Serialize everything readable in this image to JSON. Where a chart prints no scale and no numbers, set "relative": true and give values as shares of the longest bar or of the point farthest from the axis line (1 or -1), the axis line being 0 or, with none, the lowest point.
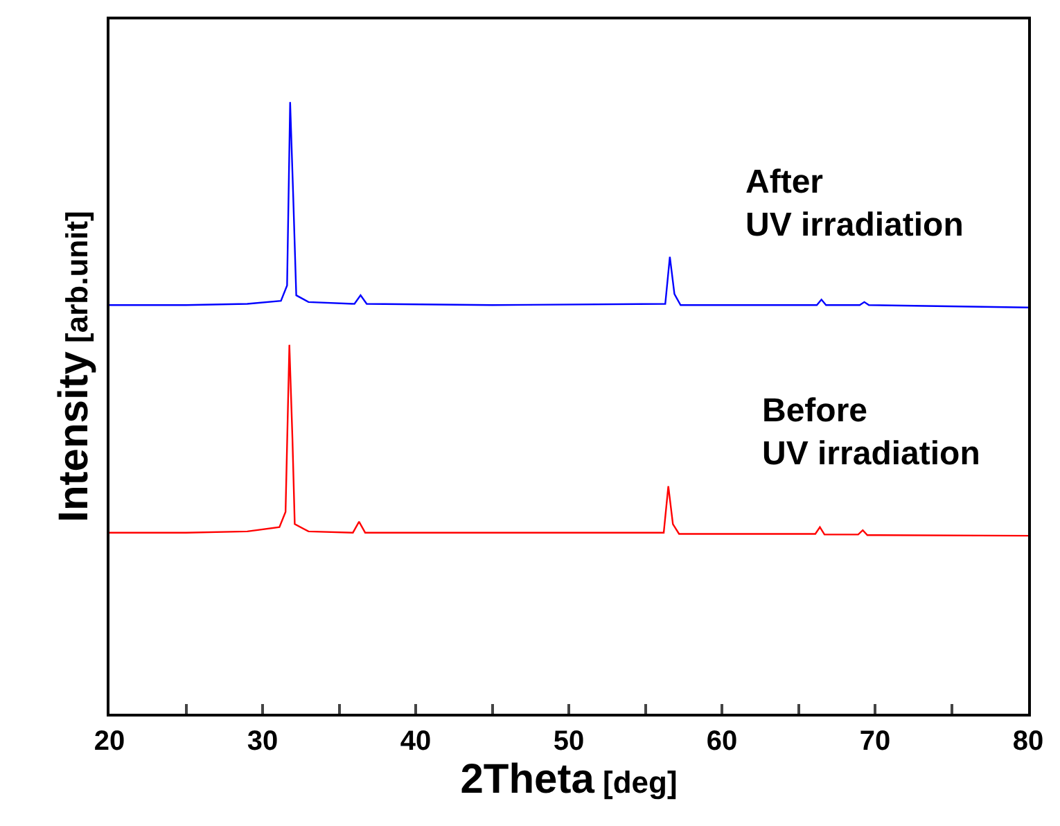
{
  "chart_data": {
    "type": "line",
    "relative": true,
    "xlabel": "2Theta [deg]",
    "ylabel": "Intensity [arb.unit]",
    "xlim": [
      20,
      80
    ],
    "xticks": [
      20,
      {
        "value": 25,
        "label": null
      },
      30,
      {
        "value": 35,
        "label": null
      },
      40,
      {
        "value": 45,
        "label": null
      },
      50,
      {
        "value": 55,
        "label": null
      },
      60,
      {
        "value": 65,
        "label": null
      },
      70,
      {
        "value": 75,
        "label": null
      },
      80
    ],
    "tick_labels": "x",
    "marker": "none",
    "line_style": "solid",
    "series": [
      {
        "name": "After\nUV irradiation",
        "color": "#0000ff",
        "x": [
          20,
          25,
          29,
          31.2,
          31.6,
          31.8,
          32.0,
          32.2,
          33,
          36.0,
          36.4,
          36.8,
          45,
          56.3,
          56.6,
          56.9,
          57.3,
          66.2,
          66.5,
          66.8,
          69.0,
          69.3,
          69.6,
          80
        ],
        "values": [
          0.668,
          0.668,
          0.67,
          0.675,
          0.7,
          1.0,
          0.847,
          0.684,
          0.673,
          0.67,
          0.684,
          0.67,
          0.668,
          0.67,
          0.747,
          0.686,
          0.668,
          0.668,
          0.677,
          0.668,
          0.668,
          0.673,
          0.668,
          0.664
        ]
      },
      {
        "name": "Before\nUV irradiation",
        "color": "#ff0000",
        "x": [
          20,
          25,
          29,
          31.1,
          31.5,
          31.75,
          31.95,
          32.1,
          33,
          35.9,
          36.3,
          36.7,
          45,
          56.2,
          56.5,
          56.8,
          57.2,
          66.1,
          66.4,
          66.7,
          68.9,
          69.2,
          69.5,
          80
        ],
        "values": [
          0.296,
          0.296,
          0.298,
          0.305,
          0.33,
          0.603,
          0.45,
          0.31,
          0.298,
          0.296,
          0.314,
          0.296,
          0.296,
          0.296,
          0.372,
          0.31,
          0.294,
          0.294,
          0.305,
          0.293,
          0.293,
          0.3,
          0.292,
          0.291
        ]
      }
    ]
  }
}
